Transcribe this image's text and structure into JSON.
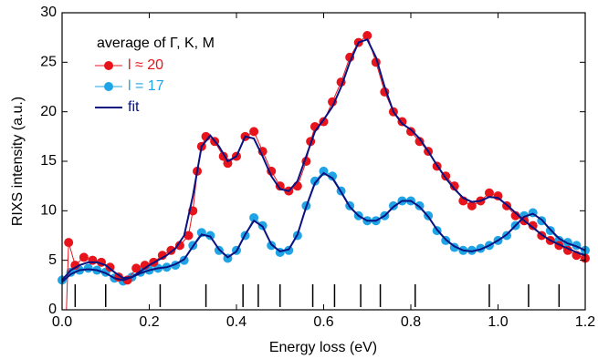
{
  "chart_data": {
    "type": "line",
    "xlabel": "Energy loss (eV)",
    "ylabel": "RIXS intensity (a.u.)",
    "legend_title": "average of Γ, K, M",
    "legend": "upper left",
    "xlim": [
      0,
      1.2
    ],
    "ylim": [
      0,
      30
    ],
    "xticks": [
      {
        "value": 0,
        "label": "0.0"
      },
      0.2,
      0.4,
      0.6,
      0.8,
      {
        "value": 1,
        "label": "1.0"
      },
      1.2
    ],
    "yticks": [
      0,
      5,
      10,
      15,
      20,
      25,
      30
    ],
    "markers": [
      0.03,
      0.1,
      0.225,
      0.33,
      0.415,
      0.45,
      0.5,
      0.575,
      0.625,
      0.685,
      0.73,
      0.81,
      0.98,
      1.07,
      1.14
    ],
    "series": [
      {
        "name": "l ≈ 20",
        "color": "#e8141c",
        "marker": true,
        "x": [
          0.01,
          0.015,
          0.03,
          0.05,
          0.07,
          0.09,
          0.11,
          0.13,
          0.15,
          0.17,
          0.19,
          0.21,
          0.23,
          0.25,
          0.27,
          0.29,
          0.3,
          0.31,
          0.32,
          0.33,
          0.35,
          0.37,
          0.38,
          0.4,
          0.42,
          0.44,
          0.46,
          0.48,
          0.5,
          0.52,
          0.54,
          0.56,
          0.57,
          0.58,
          0.6,
          0.62,
          0.64,
          0.66,
          0.68,
          0.7,
          0.72,
          0.74,
          0.76,
          0.78,
          0.8,
          0.82,
          0.84,
          0.86,
          0.88,
          0.9,
          0.92,
          0.94,
          0.96,
          0.98,
          1,
          1.02,
          1.04,
          1.06,
          1.08,
          1.1,
          1.12,
          1.14,
          1.16,
          1.18,
          1.2
        ],
        "values": [
          0,
          6.8,
          4.5,
          5.3,
          5,
          4.8,
          4.3,
          3.3,
          3,
          4.2,
          4.5,
          4.8,
          5.5,
          6,
          6.5,
          7.5,
          10,
          14,
          16.5,
          17.5,
          17,
          15.5,
          14.8,
          15.5,
          17.5,
          18,
          16,
          14,
          12.5,
          12,
          12.5,
          15,
          17,
          18.5,
          19,
          21,
          23,
          25.5,
          27,
          27.7,
          25,
          22,
          20,
          19,
          18,
          17,
          16,
          14.5,
          13.5,
          12.5,
          11,
          10.5,
          11,
          11.8,
          11.5,
          10.5,
          9.5,
          9,
          8.5,
          7.5,
          7,
          6.5,
          6,
          5.5,
          5.2
        ]
      },
      {
        "name": "l = 17",
        "color": "#1fa5e6",
        "marker": true,
        "x": [
          0,
          0.02,
          0.04,
          0.06,
          0.08,
          0.1,
          0.12,
          0.14,
          0.16,
          0.18,
          0.2,
          0.22,
          0.24,
          0.26,
          0.28,
          0.3,
          0.32,
          0.34,
          0.36,
          0.38,
          0.4,
          0.42,
          0.44,
          0.46,
          0.48,
          0.5,
          0.52,
          0.54,
          0.56,
          0.58,
          0.6,
          0.62,
          0.64,
          0.66,
          0.68,
          0.7,
          0.72,
          0.74,
          0.76,
          0.78,
          0.8,
          0.82,
          0.84,
          0.86,
          0.88,
          0.9,
          0.92,
          0.94,
          0.96,
          0.98,
          1,
          1.02,
          1.04,
          1.06,
          1.08,
          1.1,
          1.12,
          1.14,
          1.16,
          1.18,
          1.2
        ],
        "values": [
          3,
          3.8,
          4,
          4.2,
          4,
          3.8,
          3.2,
          2.9,
          3.3,
          3.8,
          4,
          4.2,
          4.3,
          4.5,
          5,
          6.5,
          7.8,
          7.5,
          6,
          5.2,
          6,
          7.5,
          9.3,
          8.5,
          6.5,
          5.8,
          6,
          7.5,
          10.5,
          13,
          14,
          13.5,
          12,
          10.5,
          9.5,
          9,
          9,
          9.5,
          10.5,
          11,
          11,
          10.5,
          9.5,
          8,
          7,
          6.3,
          6,
          6,
          6.2,
          6.5,
          7,
          7.5,
          8.5,
          9.5,
          9.8,
          9,
          8,
          7,
          6.8,
          6.5,
          6
        ]
      },
      {
        "name": "fit",
        "color": "#0a1280",
        "marker": false,
        "x": [
          0,
          0.02,
          0.04,
          0.06,
          0.08,
          0.1,
          0.12,
          0.14,
          0.16,
          0.18,
          0.2,
          0.22,
          0.24,
          0.26,
          0.28,
          0.3,
          0.32,
          0.34,
          0.36,
          0.38,
          0.4,
          0.42,
          0.44,
          0.46,
          0.48,
          0.5,
          0.52,
          0.54,
          0.56,
          0.58,
          0.6,
          0.62,
          0.64,
          0.66,
          0.68,
          0.7,
          0.72,
          0.74,
          0.76,
          0.78,
          0.8,
          0.82,
          0.84,
          0.86,
          0.88,
          0.9,
          0.92,
          0.94,
          0.96,
          0.98,
          1,
          1.02,
          1.04,
          1.06,
          1.08,
          1.1,
          1.12,
          1.14,
          1.16,
          1.18,
          1.2
        ],
        "values": [
          3,
          4,
          4.5,
          4.8,
          4.8,
          4.5,
          3.8,
          3.2,
          3.3,
          3.9,
          4.5,
          5,
          5.5,
          6.2,
          7.5,
          11.5,
          16.5,
          17.6,
          16.5,
          15,
          15.5,
          17.5,
          17.3,
          15.5,
          13.5,
          12.2,
          12,
          13,
          15.5,
          18,
          19.2,
          20.5,
          22.5,
          25,
          27,
          27.3,
          25.5,
          22.5,
          20,
          18.8,
          18.2,
          17.3,
          16,
          14.6,
          13.3,
          12.2,
          11.3,
          10.9,
          11,
          11.4,
          11.3,
          10.6,
          9.8,
          9,
          8.3,
          7.6,
          7,
          6.6,
          6.2,
          5.8,
          5.5
        ]
      },
      {
        "color": "#0a1280",
        "marker": false,
        "x": [
          0,
          0.02,
          0.04,
          0.06,
          0.08,
          0.1,
          0.12,
          0.14,
          0.16,
          0.18,
          0.2,
          0.22,
          0.24,
          0.26,
          0.28,
          0.3,
          0.32,
          0.34,
          0.36,
          0.38,
          0.4,
          0.42,
          0.44,
          0.46,
          0.48,
          0.5,
          0.52,
          0.54,
          0.56,
          0.58,
          0.6,
          0.62,
          0.64,
          0.66,
          0.68,
          0.7,
          0.72,
          0.74,
          0.76,
          0.78,
          0.8,
          0.82,
          0.84,
          0.86,
          0.88,
          0.9,
          0.92,
          0.94,
          0.96,
          0.98,
          1,
          1.02,
          1.04,
          1.06,
          1.08,
          1.1,
          1.12,
          1.14,
          1.16,
          1.18,
          1.2
        ],
        "values": [
          2.8,
          3.6,
          4,
          4.1,
          4,
          3.7,
          3.2,
          3,
          3.3,
          3.7,
          4,
          4.2,
          4.3,
          4.6,
          5.1,
          6.4,
          7.6,
          7.4,
          6.1,
          5.3,
          5.9,
          7.6,
          9,
          8.4,
          6.6,
          5.9,
          6.1,
          7.6,
          10.4,
          12.8,
          13.8,
          13.3,
          11.9,
          10.4,
          9.5,
          9,
          9,
          9.5,
          10.4,
          11,
          11,
          10.4,
          9.4,
          8.1,
          7.1,
          6.4,
          6,
          5.9,
          6.1,
          6.5,
          7,
          7.6,
          8.5,
          9.4,
          9.7,
          9.1,
          8.1,
          7.2,
          6.7,
          6.4,
          6
        ]
      }
    ]
  }
}
